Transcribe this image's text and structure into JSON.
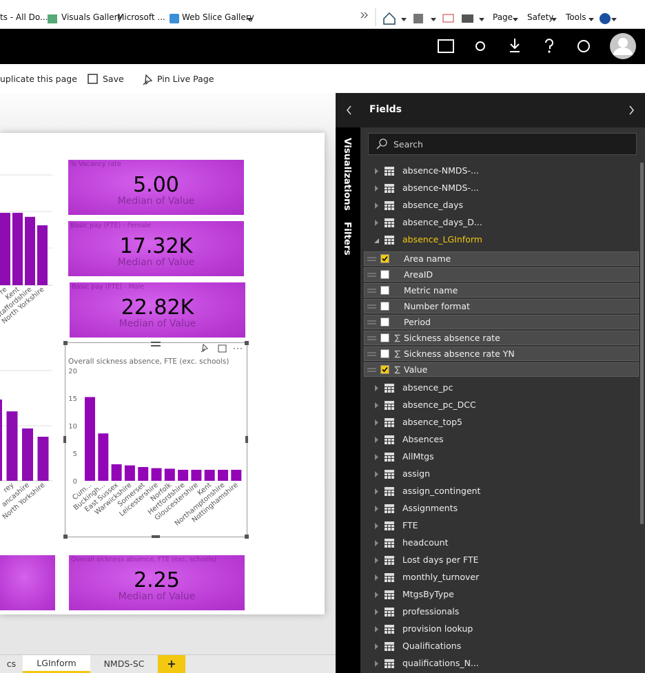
{
  "browser": {
    "favorites": [
      "ts - All Do...",
      "Visuals Gallery",
      "Microsoft ...",
      "Web Slice Gallery"
    ],
    "menus": [
      "Page",
      "Safety",
      "Tools"
    ]
  },
  "toolbar": {
    "actions": [
      "uplicate this page",
      "Save",
      "Pin Live Page"
    ]
  },
  "cards": [
    {
      "title": "% Vacancy rate",
      "value": "5.00",
      "subtitle": "Median of Value"
    },
    {
      "title": "Basic pay (FTE) - Female",
      "value": "17.32K",
      "subtitle": "Median of Value"
    },
    {
      "title": "Basic pay (FTE) - Male",
      "value": "22.82K",
      "subtitle": "Median of Value"
    },
    {
      "title": "Overall sickness absence, FTE (exc. schools)",
      "value": "2.25",
      "subtitle": "Median of Value"
    }
  ],
  "partial_charts": [
    {
      "type": "bar",
      "categories": [
        "re",
        "Kent",
        "Staffordshire",
        "North Yorkshire"
      ],
      "values": [
        1.97,
        1.97,
        1.86,
        1.63
      ],
      "ylim": [
        0,
        3
      ],
      "color": "#8e0db3"
    },
    {
      "type": "bar",
      "categories": [
        null,
        "rey",
        "ancashire",
        "North Yorkshire"
      ],
      "values": [
        14.75,
        12.6,
        9.5,
        8.0
      ],
      "ylim": [
        0,
        20
      ],
      "color": "#8e0db3"
    }
  ],
  "chart_data": {
    "type": "bar",
    "title": "Overall sickness absence, FTE (exc. schools)",
    "categories": [
      "Cum...",
      "Buckingh...",
      "East Sussex",
      "Warwickshire",
      "Somerset",
      "Leicestershire",
      "Norfolk",
      "Hertfordshire",
      "Gloucestershire",
      "Kent",
      "Northamptonshire",
      "Nottinghamshire"
    ],
    "values": [
      15.2,
      8.6,
      3.0,
      2.8,
      2.5,
      2.3,
      2.2,
      2.0,
      2.0,
      2.0,
      2.0,
      2.0
    ],
    "color": "#9306b8",
    "ylim": [
      0,
      20
    ],
    "yticks": [
      0,
      5,
      10,
      15,
      20
    ]
  },
  "fields_pane": {
    "header": "Fields",
    "side_tabs": [
      "Visualizations",
      "Filters"
    ],
    "search_placeholder": "Search",
    "tables": [
      {
        "name": "absence-NMDS-..."
      },
      {
        "name": "absence-NMDS-..."
      },
      {
        "name": "absence_days"
      },
      {
        "name": "absence_days_D..."
      },
      {
        "name": "absence_LGInform",
        "expanded": true,
        "fields": [
          {
            "name": "Area name",
            "checked": true,
            "summed": false
          },
          {
            "name": "AreaID",
            "checked": false,
            "summed": false
          },
          {
            "name": "Metric name",
            "checked": false,
            "summed": false
          },
          {
            "name": "Number format",
            "checked": false,
            "summed": false
          },
          {
            "name": "Period",
            "checked": false,
            "summed": false
          },
          {
            "name": "Sickness absence rate",
            "checked": false,
            "summed": true
          },
          {
            "name": "Sickness absence rate YN",
            "checked": false,
            "summed": true
          },
          {
            "name": "Value",
            "checked": true,
            "summed": true
          }
        ]
      },
      {
        "name": "absence_pc"
      },
      {
        "name": "absence_pc_DCC"
      },
      {
        "name": "absence_top5"
      },
      {
        "name": "Absences"
      },
      {
        "name": "AllMtgs"
      },
      {
        "name": "assign"
      },
      {
        "name": "assign_contingent"
      },
      {
        "name": "Assignments"
      },
      {
        "name": "FTE"
      },
      {
        "name": "headcount"
      },
      {
        "name": "Lost days per FTE"
      },
      {
        "name": "monthly_turnover"
      },
      {
        "name": "MtgsByType"
      },
      {
        "name": "professionals"
      },
      {
        "name": "provision lookup"
      },
      {
        "name": "Qualifications"
      },
      {
        "name": "qualifications_N..."
      }
    ]
  },
  "page_tabs": {
    "tabs": [
      "cs",
      "LGInform",
      "NMDS-SC"
    ],
    "active": 1,
    "add": "+"
  }
}
